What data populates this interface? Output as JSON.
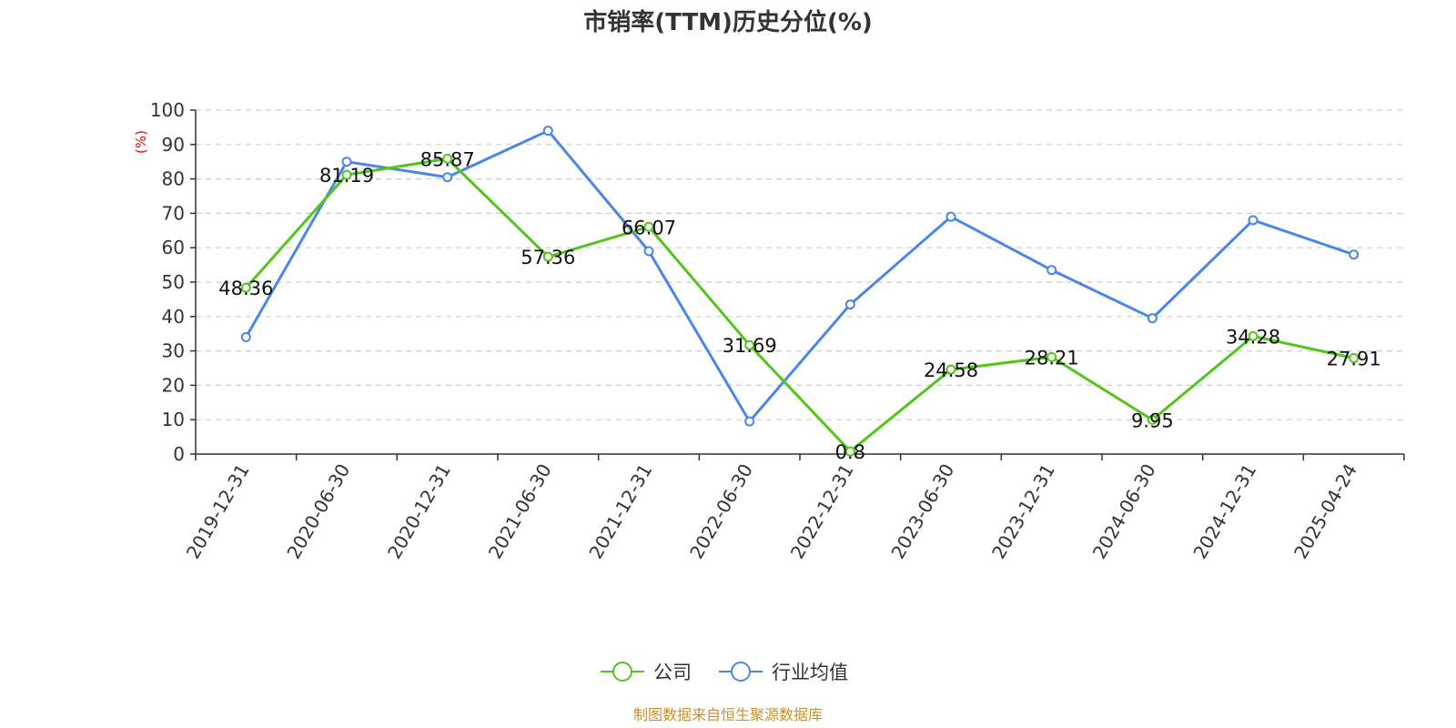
{
  "chart_data": {
    "type": "line",
    "title": "市销率(TTM)历史分位(%)",
    "ylabel": "(%)",
    "ylim": [
      0,
      100
    ],
    "yticks": [
      0,
      10,
      20,
      30,
      40,
      50,
      60,
      70,
      80,
      90,
      100
    ],
    "grid": true,
    "categories": [
      "2019-12-31",
      "2020-06-30",
      "2020-12-31",
      "2021-06-30",
      "2021-12-31",
      "2022-06-30",
      "2022-12-31",
      "2023-06-30",
      "2023-12-31",
      "2024-06-30",
      "2024-12-31",
      "2025-04-24"
    ],
    "series": [
      {
        "name": "公司",
        "color": "#52c41a",
        "values": [
          48.36,
          81.19,
          85.87,
          57.36,
          66.07,
          31.69,
          0.8,
          24.58,
          28.21,
          9.95,
          34.28,
          27.91
        ],
        "labels": [
          "48.36",
          "81.19",
          "85.87",
          "57.36",
          "66.07",
          "31.69",
          "0.8",
          "24.58",
          "28.21",
          "9.95",
          "34.28",
          "27.91"
        ]
      },
      {
        "name": "行业均值",
        "color": "#4a86e8",
        "values": [
          34,
          85,
          80.5,
          94,
          59,
          9.5,
          43.5,
          69,
          53.5,
          39.5,
          68,
          58
        ]
      }
    ],
    "legend_position": "bottom",
    "ylabel_color": "#ff0000"
  },
  "source": {
    "text": "制图数据来自恒生聚源数据库",
    "color": "#c8902a"
  }
}
